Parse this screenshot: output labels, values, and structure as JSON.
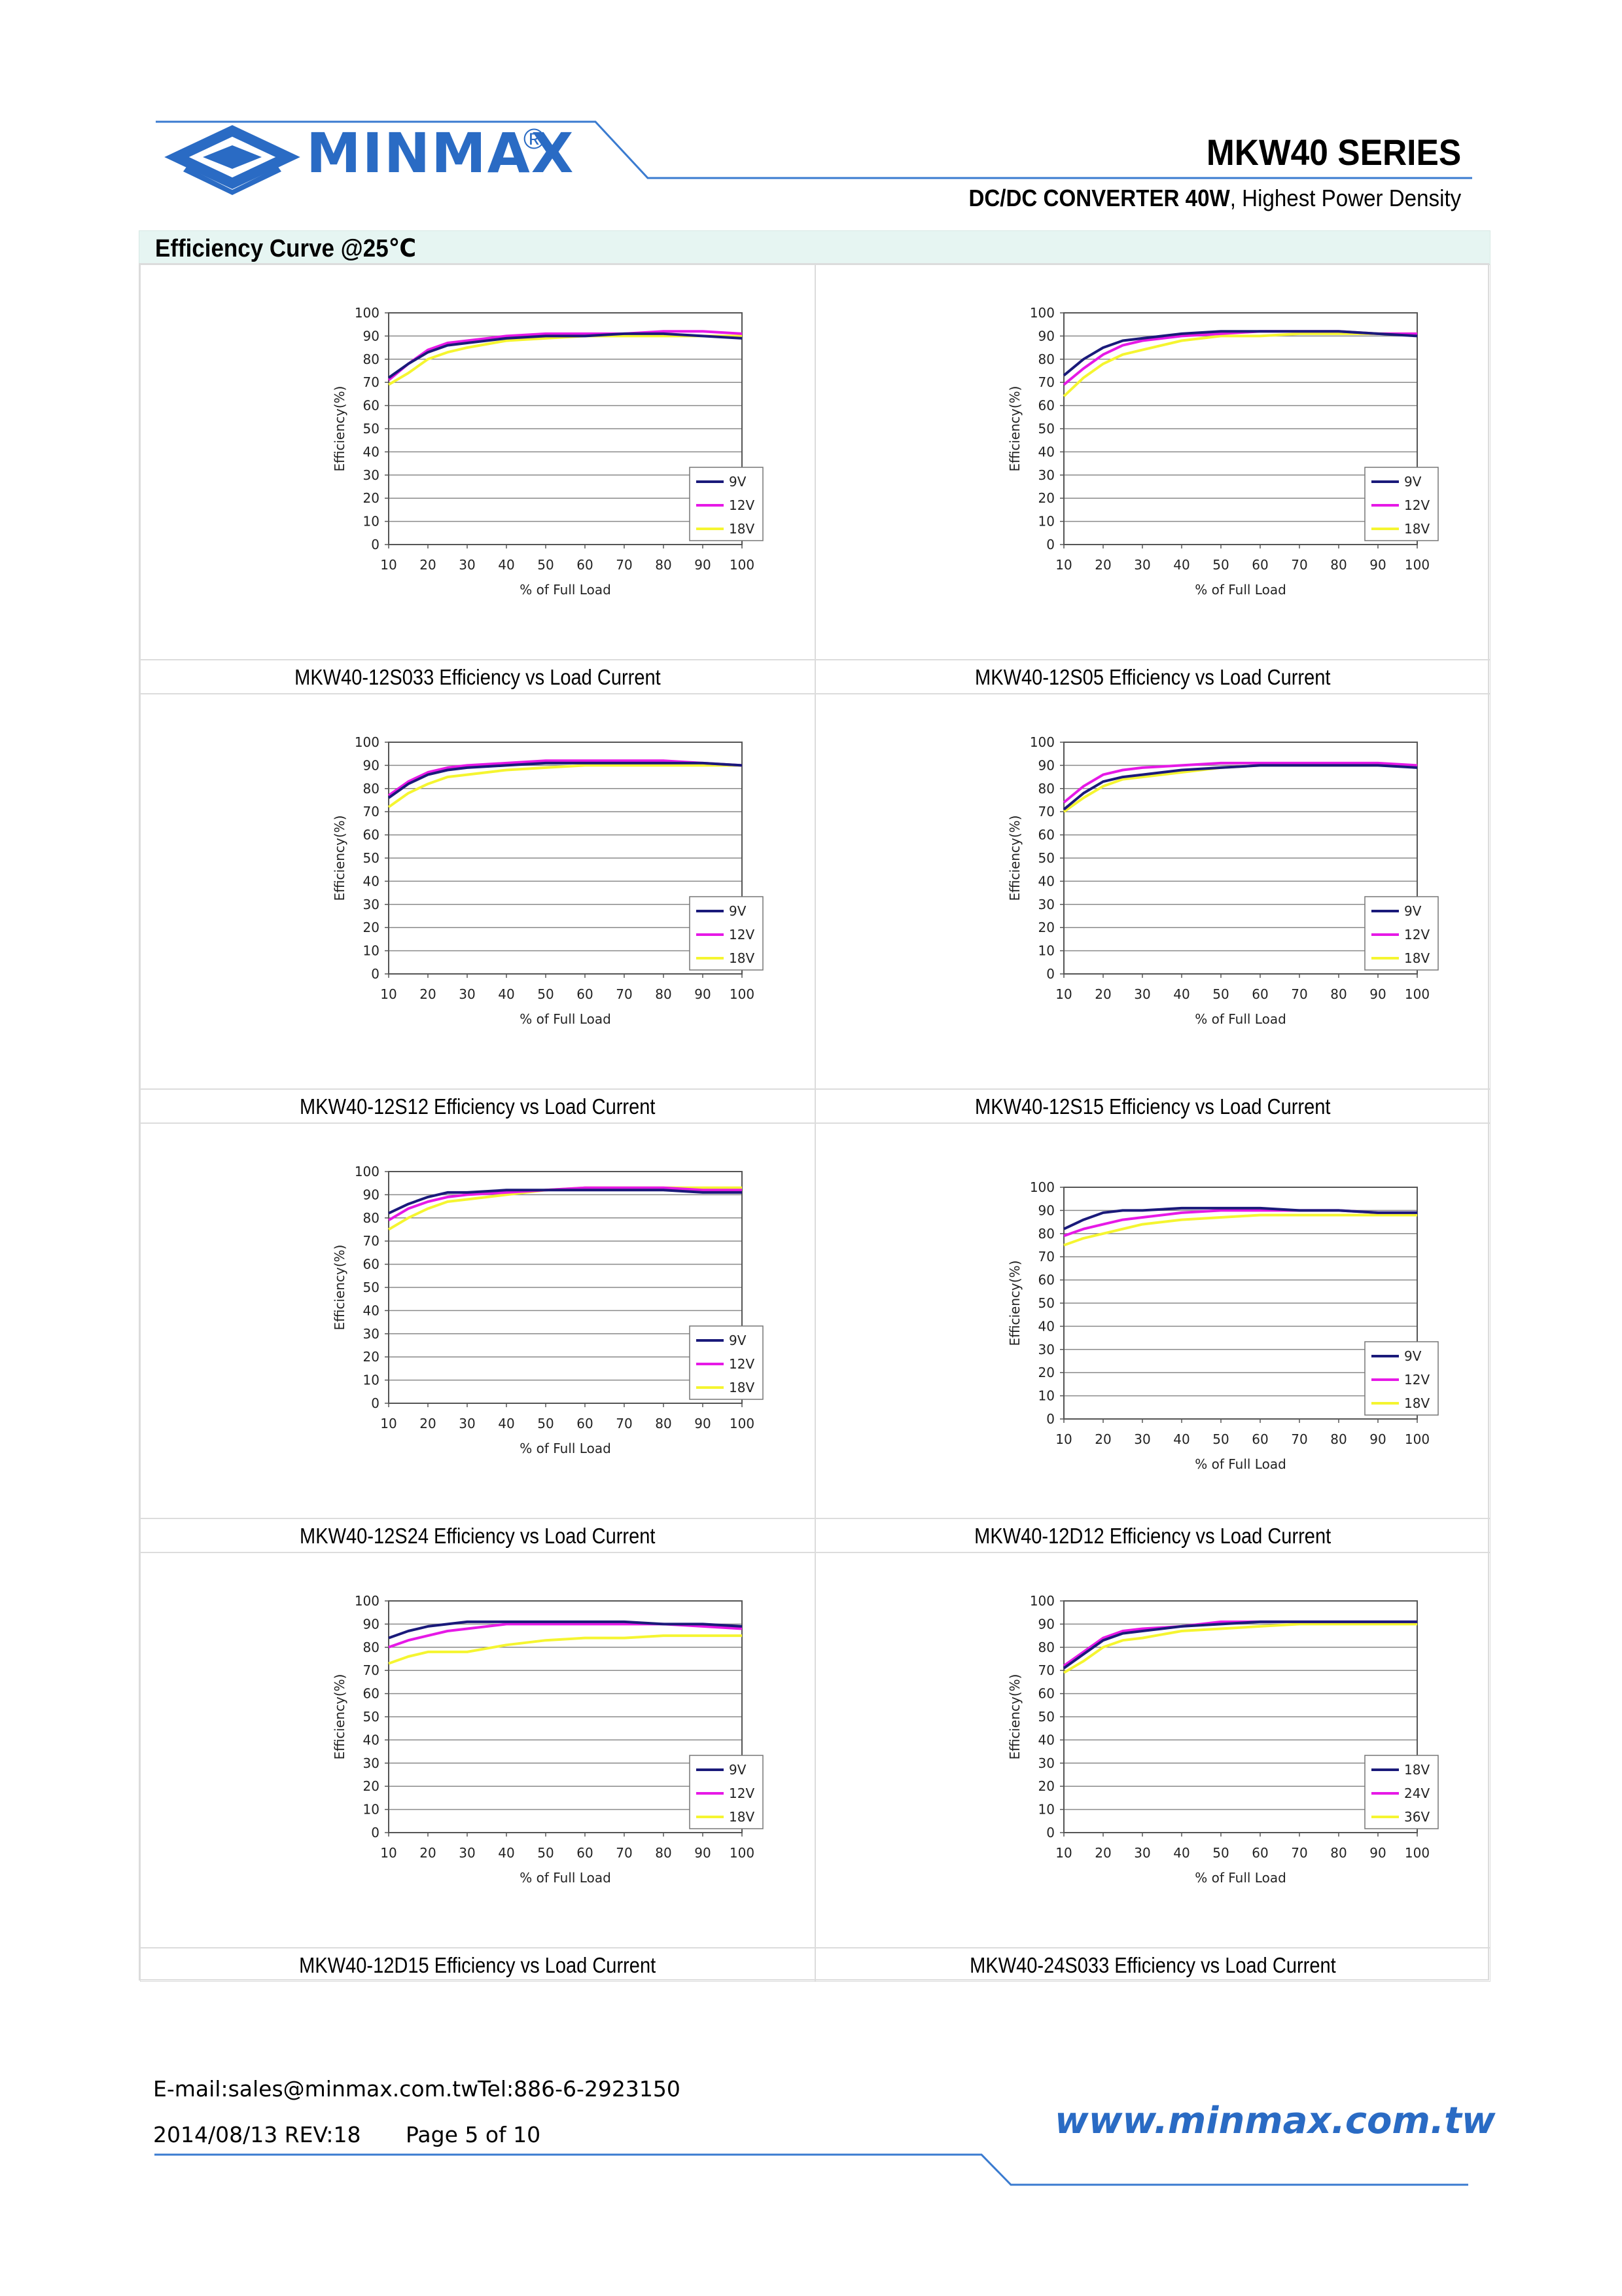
{
  "header": {
    "brand": "MINMAX",
    "registered": "®",
    "series": "MKW40 SERIES",
    "subtitle_bold": "DC/DC CONVERTER 40W",
    "subtitle_rest": ", Highest Power Density"
  },
  "section": {
    "title": "Efficiency Curve @25℃"
  },
  "colors": {
    "brand": "#2a6bc4",
    "s1": "#1a1a7a",
    "s2": "#e619e6",
    "s3": "#f5f530"
  },
  "footer": {
    "email": "E-mail:sales@minmax.com.tw",
    "tel": "Tel:886-6-2923150",
    "date_rev": "2014/08/13 REV:18",
    "page": "Page 5 of 10",
    "website": "www.minmax.com.tw"
  },
  "chart_data": [
    {
      "type": "line",
      "caption": "MKW40-12S033 Efficiency vs Load Current",
      "xlabel": "% of Full Load",
      "ylabel": "Efficiency(%)",
      "xlim": [
        10,
        100
      ],
      "ylim": [
        0,
        100
      ],
      "grid": true,
      "legend": "right",
      "x": [
        10,
        15,
        20,
        25,
        30,
        40,
        50,
        60,
        70,
        80,
        90,
        100
      ],
      "series": [
        {
          "name": "9V",
          "values": [
            72,
            78,
            83,
            86,
            87,
            89,
            90,
            90,
            91,
            91,
            90,
            89
          ]
        },
        {
          "name": "12V",
          "values": [
            71,
            78,
            84,
            87,
            88,
            90,
            91,
            91,
            91,
            92,
            92,
            91
          ]
        },
        {
          "name": "18V",
          "values": [
            69,
            74,
            80,
            83,
            85,
            88,
            89,
            90,
            90,
            90,
            90,
            90
          ]
        }
      ]
    },
    {
      "type": "line",
      "caption": "MKW40-12S05 Efficiency vs Load Current",
      "xlabel": "% of Full Load",
      "ylabel": "Efficiency(%)",
      "xlim": [
        10,
        100
      ],
      "ylim": [
        0,
        100
      ],
      "grid": true,
      "legend": "right",
      "x": [
        10,
        15,
        20,
        25,
        30,
        40,
        50,
        60,
        70,
        80,
        90,
        100
      ],
      "series": [
        {
          "name": "9V",
          "values": [
            73,
            80,
            85,
            88,
            89,
            91,
            92,
            92,
            92,
            92,
            91,
            90
          ]
        },
        {
          "name": "12V",
          "values": [
            69,
            76,
            82,
            86,
            88,
            90,
            91,
            92,
            92,
            92,
            91,
            91
          ]
        },
        {
          "name": "18V",
          "values": [
            64,
            72,
            78,
            82,
            84,
            88,
            90,
            90,
            91,
            91,
            91,
            91
          ]
        }
      ]
    },
    {
      "type": "line",
      "caption": "MKW40-12S12 Efficiency vs Load Current",
      "xlabel": "% of Full Load",
      "ylabel": "Efficiency(%)",
      "xlim": [
        10,
        100
      ],
      "ylim": [
        0,
        100
      ],
      "grid": true,
      "legend": "right",
      "x": [
        10,
        15,
        20,
        25,
        30,
        40,
        50,
        60,
        70,
        80,
        90,
        100
      ],
      "series": [
        {
          "name": "9V",
          "values": [
            76,
            82,
            86,
            88,
            89,
            90,
            91,
            91,
            91,
            91,
            91,
            90
          ]
        },
        {
          "name": "12V",
          "values": [
            77,
            83,
            87,
            89,
            90,
            91,
            92,
            92,
            92,
            92,
            91,
            90
          ]
        },
        {
          "name": "18V",
          "values": [
            72,
            78,
            82,
            85,
            86,
            88,
            89,
            90,
            90,
            90,
            90,
            90
          ]
        }
      ]
    },
    {
      "type": "line",
      "caption": "MKW40-12S15 Efficiency vs Load Current",
      "xlabel": "% of Full Load",
      "ylabel": "Efficiency(%)",
      "xlim": [
        10,
        100
      ],
      "ylim": [
        0,
        100
      ],
      "grid": true,
      "legend": "right",
      "x": [
        10,
        15,
        20,
        25,
        30,
        40,
        50,
        60,
        70,
        80,
        90,
        100
      ],
      "series": [
        {
          "name": "9V",
          "values": [
            71,
            78,
            83,
            85,
            86,
            88,
            89,
            90,
            90,
            90,
            90,
            89
          ]
        },
        {
          "name": "12V",
          "values": [
            74,
            81,
            86,
            88,
            89,
            90,
            91,
            91,
            91,
            91,
            91,
            90
          ]
        },
        {
          "name": "18V",
          "values": [
            70,
            76,
            81,
            84,
            85,
            87,
            89,
            90,
            90,
            90,
            90,
            90
          ]
        }
      ]
    },
    {
      "type": "line",
      "caption": "MKW40-12S24 Efficiency vs Load Current",
      "xlabel": "% of Full Load",
      "ylabel": "Efficiency(%)",
      "xlim": [
        10,
        100
      ],
      "ylim": [
        0,
        100
      ],
      "grid": true,
      "legend": "right",
      "x": [
        10,
        15,
        20,
        25,
        30,
        40,
        50,
        60,
        70,
        80,
        90,
        100
      ],
      "series": [
        {
          "name": "9V",
          "values": [
            82,
            86,
            89,
            91,
            91,
            92,
            92,
            92,
            92,
            92,
            91,
            91
          ]
        },
        {
          "name": "12V",
          "values": [
            79,
            84,
            87,
            89,
            90,
            91,
            92,
            93,
            93,
            93,
            92,
            92
          ]
        },
        {
          "name": "18V",
          "values": [
            75,
            80,
            84,
            87,
            88,
            90,
            92,
            93,
            93,
            93,
            93,
            93
          ]
        }
      ]
    },
    {
      "type": "line",
      "caption": "MKW40-12D12 Efficiency vs Load Current",
      "xlabel": "% of Full Load",
      "ylabel": "Efficiency(%)",
      "xlim": [
        10,
        100
      ],
      "ylim": [
        0,
        100
      ],
      "grid": true,
      "legend": "right",
      "x": [
        10,
        15,
        20,
        25,
        30,
        40,
        50,
        60,
        70,
        80,
        90,
        100
      ],
      "series": [
        {
          "name": "9V",
          "values": [
            82,
            86,
            89,
            90,
            90,
            91,
            91,
            91,
            90,
            90,
            89,
            89
          ]
        },
        {
          "name": "12V",
          "values": [
            79,
            82,
            84,
            86,
            87,
            89,
            90,
            90,
            90,
            90,
            89,
            89
          ]
        },
        {
          "name": "18V",
          "values": [
            75,
            78,
            80,
            82,
            84,
            86,
            87,
            88,
            88,
            88,
            88,
            88
          ]
        }
      ]
    },
    {
      "type": "line",
      "caption": "MKW40-12D15 Efficiency vs Load Current",
      "xlabel": "% of Full Load",
      "ylabel": "Efficiency(%)",
      "xlim": [
        10,
        100
      ],
      "ylim": [
        0,
        100
      ],
      "grid": true,
      "legend": "right",
      "x": [
        10,
        15,
        20,
        25,
        30,
        40,
        50,
        60,
        70,
        80,
        90,
        100
      ],
      "series": [
        {
          "name": "9V",
          "values": [
            84,
            87,
            89,
            90,
            91,
            91,
            91,
            91,
            91,
            90,
            90,
            89
          ]
        },
        {
          "name": "12V",
          "values": [
            80,
            83,
            85,
            87,
            88,
            90,
            90,
            90,
            90,
            90,
            89,
            88
          ]
        },
        {
          "name": "18V",
          "values": [
            73,
            76,
            78,
            78,
            78,
            81,
            83,
            84,
            84,
            85,
            85,
            85
          ]
        }
      ]
    },
    {
      "type": "line",
      "caption": "MKW40-24S033 Efficiency vs Load Current",
      "xlabel": "% of Full Load",
      "ylabel": "Efficiency(%)",
      "xlim": [
        10,
        100
      ],
      "ylim": [
        0,
        100
      ],
      "grid": true,
      "legend": "right",
      "x": [
        10,
        15,
        20,
        25,
        30,
        40,
        50,
        60,
        70,
        80,
        90,
        100
      ],
      "series": [
        {
          "name": "18V",
          "values": [
            71,
            77,
            83,
            86,
            87,
            89,
            90,
            91,
            91,
            91,
            91,
            91
          ]
        },
        {
          "name": "24V",
          "values": [
            72,
            78,
            84,
            87,
            88,
            89,
            91,
            91,
            91,
            91,
            91,
            91
          ]
        },
        {
          "name": "36V",
          "values": [
            69,
            74,
            80,
            83,
            84,
            87,
            88,
            89,
            90,
            90,
            90,
            90
          ]
        }
      ]
    }
  ]
}
